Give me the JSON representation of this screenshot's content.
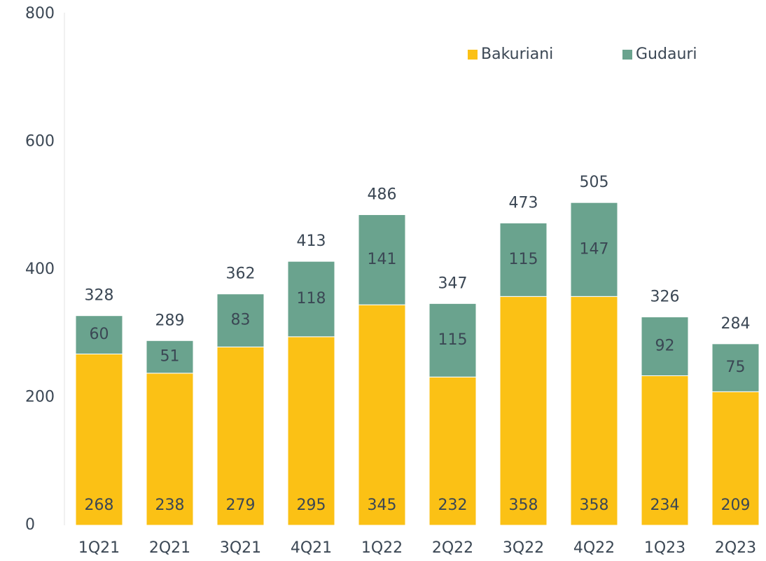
{
  "chart_data": {
    "type": "stacked_bar",
    "categories": [
      "1Q21",
      "2Q21",
      "3Q21",
      "4Q21",
      "1Q22",
      "2Q22",
      "3Q22",
      "4Q22",
      "1Q23",
      "2Q23"
    ],
    "series": [
      {
        "name": "Bakuriani",
        "color": "#fbc115",
        "values": [
          268,
          238,
          279,
          295,
          345,
          232,
          358,
          358,
          234,
          209
        ]
      },
      {
        "name": "Gudauri",
        "color": "#6aa38e",
        "values": [
          60,
          51,
          83,
          118,
          141,
          115,
          115,
          147,
          92,
          75
        ]
      }
    ],
    "totals": [
      328,
      289,
      362,
      413,
      486,
      347,
      473,
      505,
      326,
      284
    ],
    "ylim": [
      0,
      800
    ],
    "yticks": [
      0,
      200,
      400,
      600,
      800
    ],
    "grid": false,
    "legend": "top-right"
  }
}
